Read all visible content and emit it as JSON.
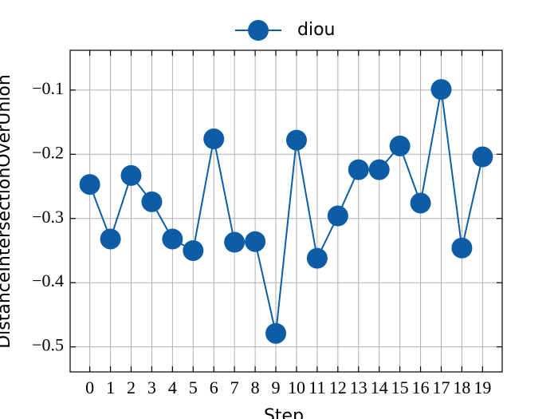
{
  "chart_data": {
    "type": "line",
    "x_label": "Step",
    "y_label": "DistanceIntersectionOverUnion",
    "x": [
      0,
      1,
      2,
      3,
      4,
      5,
      6,
      7,
      8,
      9,
      10,
      11,
      12,
      13,
      14,
      15,
      16,
      17,
      18,
      19
    ],
    "series": [
      {
        "name": "diou",
        "color": "#0C5DA5",
        "values": [
          -0.247,
          -0.332,
          -0.233,
          -0.274,
          -0.332,
          -0.35,
          -0.176,
          -0.337,
          -0.336,
          -0.479,
          -0.178,
          -0.362,
          -0.296,
          -0.224,
          -0.224,
          -0.187,
          -0.276,
          -0.099,
          -0.346,
          -0.204
        ]
      }
    ],
    "xlim": [
      -0.95,
      19.95
    ],
    "ylim": [
      -0.539,
      -0.038
    ],
    "xticks": [
      0,
      1,
      2,
      3,
      4,
      5,
      6,
      7,
      8,
      9,
      10,
      11,
      12,
      13,
      14,
      15,
      16,
      17,
      18,
      19
    ],
    "yticks": [
      {
        "value": -0.5,
        "label": "−0.5"
      },
      {
        "value": -0.4,
        "label": "−0.4"
      },
      {
        "value": -0.3,
        "label": "−0.3"
      },
      {
        "value": -0.2,
        "label": "−0.2"
      },
      {
        "value": -0.1,
        "label": "−0.1"
      }
    ],
    "grid": true,
    "legend": "upper center"
  }
}
